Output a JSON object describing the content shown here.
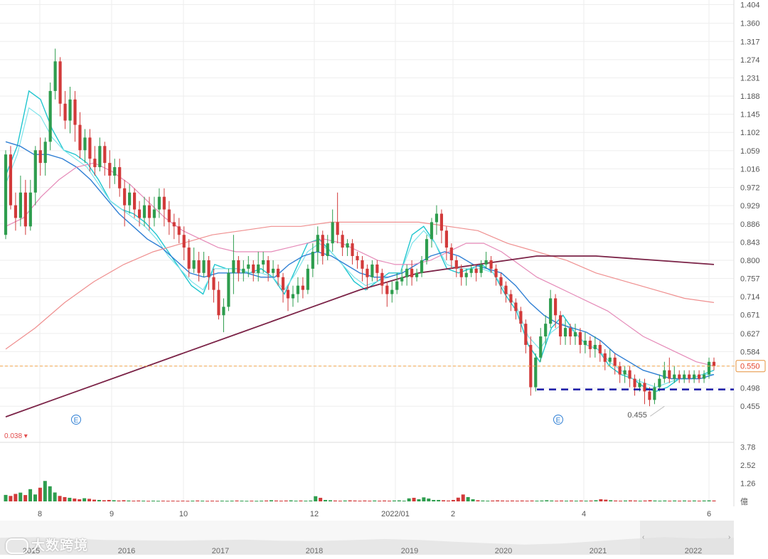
{
  "colors": {
    "up": "#2e9d4e",
    "down": "#d23a3a",
    "ma_fast": "#20c6cf",
    "ma_fast2": "#7de3ea",
    "ma_mid": "#2f7fd4",
    "ma_long": "#e58ab8",
    "ma_longer": "#ef8f8f",
    "ma_longest": "#7b2347",
    "price_line": "#f4a64b",
    "support_line": "#1a1aa8",
    "badge": "#2f7fd4",
    "grid": "#eeeeee"
  },
  "chart_data": {
    "type": "candlestick",
    "price_axis": {
      "ticks": [
        "1.404",
        "1.360",
        "1.317",
        "1.274",
        "1.231",
        "1.188",
        "1.145",
        "1.102",
        "1.059",
        "1.016",
        "0.972",
        "0.929",
        "0.886",
        "0.843",
        "0.800",
        "0.757",
        "0.714",
        "0.671",
        "0.627",
        "0.584",
        "0.550",
        "0.498",
        "0.455"
      ],
      "range": [
        0.41,
        1.415
      ]
    },
    "time_axis": {
      "labels": [
        "8",
        "9",
        "10",
        "12",
        "2022/01",
        "2",
        "4",
        "6"
      ]
    },
    "current_price": {
      "value": 0.55,
      "label": "0.550"
    },
    "support_level": 0.498,
    "low_annotation": {
      "value": 0.455,
      "label": "0.455"
    },
    "change_label": "0.038 ▾",
    "event_badges": [
      {
        "label": "E"
      },
      {
        "label": "E"
      }
    ],
    "candles": [
      [
        0.86,
        1.05,
        0.85,
        1.06
      ],
      [
        1.05,
        0.93,
        0.92,
        1.07
      ],
      [
        0.93,
        0.9,
        0.87,
        0.96
      ],
      [
        0.9,
        0.96,
        0.88,
        1.0
      ],
      [
        0.96,
        0.88,
        0.86,
        0.99
      ],
      [
        0.88,
        0.96,
        0.87,
        0.99
      ],
      [
        0.96,
        1.06,
        0.93,
        1.07
      ],
      [
        1.06,
        1.03,
        1.0,
        1.09
      ],
      [
        1.03,
        1.08,
        1.0,
        1.09
      ],
      [
        1.08,
        1.2,
        1.06,
        1.22
      ],
      [
        1.2,
        1.27,
        1.18,
        1.3
      ],
      [
        1.27,
        1.17,
        1.14,
        1.28
      ],
      [
        1.17,
        1.13,
        1.11,
        1.2
      ],
      [
        1.13,
        1.18,
        1.1,
        1.21
      ],
      [
        1.18,
        1.12,
        1.08,
        1.2
      ],
      [
        1.12,
        1.06,
        1.04,
        1.15
      ],
      [
        1.06,
        1.09,
        1.03,
        1.11
      ],
      [
        1.09,
        1.04,
        1.01,
        1.11
      ],
      [
        1.04,
        1.02,
        1.0,
        1.07
      ],
      [
        1.02,
        1.07,
        1.01,
        1.09
      ],
      [
        1.07,
        1.03,
        1.0,
        1.08
      ],
      [
        1.03,
        1.0,
        0.97,
        1.06
      ],
      [
        1.0,
        1.02,
        0.98,
        1.04
      ],
      [
        1.02,
        0.97,
        0.95,
        1.04
      ],
      [
        0.97,
        0.93,
        0.88,
        0.99
      ],
      [
        0.93,
        0.96,
        0.91,
        0.98
      ],
      [
        0.96,
        0.92,
        0.9,
        0.97
      ],
      [
        0.92,
        0.9,
        0.88,
        0.94
      ],
      [
        0.9,
        0.93,
        0.88,
        0.95
      ],
      [
        0.93,
        0.9,
        0.87,
        0.95
      ],
      [
        0.9,
        0.92,
        0.88,
        0.95
      ],
      [
        0.92,
        0.95,
        0.9,
        0.97
      ],
      [
        0.95,
        0.92,
        0.88,
        0.97
      ],
      [
        0.92,
        0.89,
        0.86,
        0.94
      ],
      [
        0.89,
        0.88,
        0.85,
        0.91
      ],
      [
        0.88,
        0.86,
        0.84,
        0.9
      ],
      [
        0.86,
        0.83,
        0.8,
        0.88
      ],
      [
        0.83,
        0.78,
        0.76,
        0.85
      ],
      [
        0.78,
        0.8,
        0.77,
        0.83
      ],
      [
        0.8,
        0.77,
        0.75,
        0.82
      ],
      [
        0.77,
        0.8,
        0.76,
        0.82
      ],
      [
        0.8,
        0.76,
        0.73,
        0.81
      ],
      [
        0.76,
        0.73,
        0.7,
        0.78
      ],
      [
        0.73,
        0.67,
        0.66,
        0.75
      ],
      [
        0.67,
        0.69,
        0.63,
        0.71
      ],
      [
        0.69,
        0.77,
        0.68,
        0.78
      ],
      [
        0.77,
        0.8,
        0.72,
        0.86
      ],
      [
        0.8,
        0.77,
        0.75,
        0.81
      ],
      [
        0.77,
        0.78,
        0.75,
        0.8
      ],
      [
        0.78,
        0.79,
        0.76,
        0.81
      ],
      [
        0.79,
        0.77,
        0.75,
        0.8
      ],
      [
        0.77,
        0.79,
        0.75,
        0.82
      ],
      [
        0.79,
        0.8,
        0.77,
        0.82
      ],
      [
        0.8,
        0.77,
        0.75,
        0.81
      ],
      [
        0.77,
        0.78,
        0.76,
        0.8
      ],
      [
        0.78,
        0.76,
        0.74,
        0.79
      ],
      [
        0.76,
        0.73,
        0.7,
        0.77
      ],
      [
        0.73,
        0.71,
        0.68,
        0.74
      ],
      [
        0.71,
        0.72,
        0.69,
        0.74
      ],
      [
        0.72,
        0.74,
        0.7,
        0.76
      ],
      [
        0.74,
        0.73,
        0.71,
        0.76
      ],
      [
        0.73,
        0.78,
        0.72,
        0.79
      ],
      [
        0.78,
        0.82,
        0.76,
        0.84
      ],
      [
        0.82,
        0.86,
        0.79,
        0.88
      ],
      [
        0.86,
        0.81,
        0.79,
        0.87
      ],
      [
        0.81,
        0.84,
        0.8,
        0.86
      ],
      [
        0.84,
        0.89,
        0.82,
        0.92
      ],
      [
        0.89,
        0.86,
        0.84,
        0.96
      ],
      [
        0.86,
        0.83,
        0.81,
        0.87
      ],
      [
        0.83,
        0.84,
        0.81,
        0.85
      ],
      [
        0.84,
        0.81,
        0.79,
        0.85
      ],
      [
        0.81,
        0.8,
        0.78,
        0.82
      ],
      [
        0.8,
        0.78,
        0.75,
        0.81
      ],
      [
        0.78,
        0.76,
        0.73,
        0.79
      ],
      [
        0.76,
        0.79,
        0.75,
        0.8
      ],
      [
        0.79,
        0.77,
        0.75,
        0.8
      ],
      [
        0.77,
        0.74,
        0.72,
        0.78
      ],
      [
        0.74,
        0.72,
        0.69,
        0.75
      ],
      [
        0.72,
        0.73,
        0.7,
        0.75
      ],
      [
        0.73,
        0.75,
        0.72,
        0.77
      ],
      [
        0.75,
        0.76,
        0.74,
        0.78
      ],
      [
        0.76,
        0.78,
        0.74,
        0.79
      ],
      [
        0.78,
        0.76,
        0.74,
        0.8
      ],
      [
        0.76,
        0.77,
        0.75,
        0.78
      ],
      [
        0.77,
        0.8,
        0.76,
        0.81
      ],
      [
        0.8,
        0.85,
        0.79,
        0.86
      ],
      [
        0.85,
        0.89,
        0.83,
        0.9
      ],
      [
        0.89,
        0.91,
        0.86,
        0.93
      ],
      [
        0.91,
        0.87,
        0.84,
        0.92
      ],
      [
        0.87,
        0.83,
        0.8,
        0.88
      ],
      [
        0.83,
        0.8,
        0.78,
        0.84
      ],
      [
        0.8,
        0.78,
        0.76,
        0.81
      ],
      [
        0.78,
        0.76,
        0.74,
        0.79
      ],
      [
        0.76,
        0.77,
        0.74,
        0.78
      ],
      [
        0.77,
        0.78,
        0.76,
        0.79
      ],
      [
        0.78,
        0.77,
        0.75,
        0.79
      ],
      [
        0.77,
        0.79,
        0.76,
        0.8
      ],
      [
        0.79,
        0.8,
        0.78,
        0.82
      ],
      [
        0.8,
        0.78,
        0.77,
        0.81
      ],
      [
        0.78,
        0.76,
        0.74,
        0.79
      ],
      [
        0.76,
        0.74,
        0.72,
        0.77
      ],
      [
        0.74,
        0.72,
        0.7,
        0.75
      ],
      [
        0.72,
        0.7,
        0.68,
        0.73
      ],
      [
        0.7,
        0.68,
        0.66,
        0.71
      ],
      [
        0.68,
        0.65,
        0.63,
        0.69
      ],
      [
        0.65,
        0.6,
        0.58,
        0.66
      ],
      [
        0.6,
        0.5,
        0.48,
        0.62
      ],
      [
        0.5,
        0.57,
        0.49,
        0.58
      ],
      [
        0.57,
        0.62,
        0.56,
        0.64
      ],
      [
        0.62,
        0.65,
        0.6,
        0.67
      ],
      [
        0.65,
        0.71,
        0.64,
        0.73
      ],
      [
        0.71,
        0.67,
        0.64,
        0.72
      ],
      [
        0.67,
        0.62,
        0.6,
        0.68
      ],
      [
        0.62,
        0.64,
        0.6,
        0.66
      ],
      [
        0.64,
        0.62,
        0.6,
        0.65
      ],
      [
        0.62,
        0.63,
        0.6,
        0.65
      ],
      [
        0.63,
        0.6,
        0.58,
        0.64
      ],
      [
        0.6,
        0.61,
        0.58,
        0.63
      ],
      [
        0.61,
        0.59,
        0.57,
        0.62
      ],
      [
        0.59,
        0.6,
        0.57,
        0.62
      ],
      [
        0.6,
        0.58,
        0.56,
        0.61
      ],
      [
        0.58,
        0.56,
        0.54,
        0.59
      ],
      [
        0.56,
        0.57,
        0.55,
        0.59
      ],
      [
        0.57,
        0.55,
        0.53,
        0.58
      ],
      [
        0.55,
        0.53,
        0.51,
        0.56
      ],
      [
        0.53,
        0.54,
        0.51,
        0.55
      ],
      [
        0.54,
        0.52,
        0.5,
        0.55
      ],
      [
        0.52,
        0.5,
        0.48,
        0.53
      ],
      [
        0.5,
        0.51,
        0.49,
        0.52
      ],
      [
        0.51,
        0.49,
        0.46,
        0.52
      ],
      [
        0.49,
        0.47,
        0.455,
        0.5
      ],
      [
        0.47,
        0.5,
        0.46,
        0.51
      ],
      [
        0.5,
        0.52,
        0.49,
        0.53
      ],
      [
        0.52,
        0.54,
        0.51,
        0.56
      ],
      [
        0.54,
        0.52,
        0.51,
        0.57
      ],
      [
        0.52,
        0.53,
        0.51,
        0.55
      ],
      [
        0.53,
        0.52,
        0.51,
        0.54
      ],
      [
        0.52,
        0.53,
        0.51,
        0.54
      ],
      [
        0.53,
        0.52,
        0.51,
        0.54
      ],
      [
        0.52,
        0.53,
        0.51,
        0.54
      ],
      [
        0.53,
        0.52,
        0.51,
        0.54
      ],
      [
        0.52,
        0.53,
        0.51,
        0.54
      ],
      [
        0.53,
        0.56,
        0.52,
        0.57
      ],
      [
        0.56,
        0.55,
        0.54,
        0.57
      ]
    ],
    "moving_averages": [
      {
        "values": [
          1.0,
          1.07,
          1.2,
          1.18,
          1.11,
          1.06,
          1.05,
          1.03,
          0.99,
          0.94,
          0.92,
          0.91,
          0.89,
          0.86,
          0.82,
          0.78,
          0.74,
          0.72,
          0.79,
          0.78,
          0.78,
          0.77,
          0.78,
          0.76,
          0.72,
          0.78,
          0.84,
          0.85,
          0.82,
          0.79,
          0.75,
          0.73,
          0.75,
          0.77,
          0.77,
          0.86,
          0.88,
          0.84,
          0.78,
          0.77,
          0.78,
          0.79,
          0.77,
          0.72,
          0.68,
          0.6,
          0.56,
          0.64,
          0.67,
          0.63,
          0.6,
          0.59,
          0.55,
          0.53,
          0.52,
          0.5,
          0.49,
          0.5,
          0.52,
          0.52,
          0.53,
          0.54
        ]
      },
      {
        "values": [
          0.98,
          1.05,
          1.16,
          1.14,
          1.09,
          1.06,
          1.04,
          1.02,
          0.98,
          0.94,
          0.92,
          0.9,
          0.88,
          0.85,
          0.81,
          0.78,
          0.75,
          0.73,
          0.78,
          0.78,
          0.78,
          0.77,
          0.77,
          0.76,
          0.73,
          0.77,
          0.82,
          0.84,
          0.82,
          0.79,
          0.76,
          0.74,
          0.75,
          0.76,
          0.77,
          0.84,
          0.87,
          0.84,
          0.79,
          0.78,
          0.78,
          0.78,
          0.77,
          0.73,
          0.69,
          0.62,
          0.59,
          0.63,
          0.65,
          0.63,
          0.6,
          0.59,
          0.56,
          0.54,
          0.52,
          0.51,
          0.5,
          0.51,
          0.52,
          0.52,
          0.53,
          0.53
        ]
      },
      {
        "values": [
          1.08,
          1.07,
          1.05,
          1.05,
          1.04,
          1.02,
          0.99,
          0.95,
          0.91,
          0.88,
          0.85,
          0.83,
          0.8,
          0.77,
          0.76,
          0.77,
          0.77,
          0.77,
          0.76,
          0.76,
          0.79,
          0.81,
          0.82,
          0.81,
          0.79,
          0.77,
          0.76,
          0.76,
          0.77,
          0.79,
          0.81,
          0.82,
          0.81,
          0.79,
          0.78,
          0.77,
          0.74,
          0.7,
          0.67,
          0.65,
          0.64,
          0.63,
          0.61,
          0.58,
          0.56,
          0.54,
          0.53,
          0.52,
          0.52,
          0.52,
          0.53
        ]
      },
      {
        "values": [
          0.88,
          0.9,
          0.95,
          0.99,
          1.02,
          1.03,
          1.01,
          0.98,
          0.94,
          0.9,
          0.87,
          0.85,
          0.83,
          0.82,
          0.82,
          0.82,
          0.83,
          0.84,
          0.85,
          0.84,
          0.82,
          0.8,
          0.79,
          0.79,
          0.8,
          0.82,
          0.84,
          0.84,
          0.82,
          0.79,
          0.76,
          0.74,
          0.72,
          0.7,
          0.68,
          0.65,
          0.62,
          0.6,
          0.58,
          0.56,
          0.55
        ]
      },
      {
        "values": [
          0.59,
          0.64,
          0.7,
          0.75,
          0.79,
          0.82,
          0.84,
          0.86,
          0.87,
          0.88,
          0.88,
          0.89,
          0.89,
          0.89,
          0.89,
          0.88,
          0.87,
          0.84,
          0.82,
          0.8,
          0.77,
          0.75,
          0.73,
          0.71,
          0.7
        ]
      },
      {
        "values": [
          0.43,
          0.48,
          0.53,
          0.58,
          0.63,
          0.68,
          0.73,
          0.77,
          0.79,
          0.81,
          0.81,
          0.8,
          0.79
        ]
      }
    ],
    "volume_axis": {
      "ticks": [
        "3.78",
        "2.52",
        "1.26"
      ],
      "unit": "億",
      "range": [
        0,
        4.2
      ]
    },
    "volume": [
      0.45,
      0.38,
      0.52,
      0.61,
      0.44,
      0.85,
      0.48,
      0.95,
      1.42,
      1.05,
      0.62,
      0.38,
      0.3,
      0.25,
      0.2,
      0.15,
      0.22,
      0.18,
      0.12,
      0.1,
      0.08,
      0.1,
      0.08,
      0.06,
      0.08,
      0.06,
      0.05,
      0.06,
      0.05,
      0.04,
      0.05,
      0.04,
      0.05,
      0.04,
      0.05,
      0.04,
      0.05,
      0.04,
      0.05,
      0.06,
      0.05,
      0.04,
      0.05,
      0.04,
      0.05,
      0.04,
      0.05,
      0.06,
      0.05,
      0.04,
      0.05,
      0.04,
      0.05,
      0.06,
      0.08,
      0.06,
      0.05,
      0.06,
      0.07,
      0.05,
      0.06,
      0.05,
      0.06,
      0.36,
      0.25,
      0.1,
      0.08,
      0.06,
      0.05,
      0.06,
      0.07,
      0.06,
      0.05,
      0.06,
      0.05,
      0.06,
      0.05,
      0.06,
      0.05,
      0.06,
      0.07,
      0.05,
      0.21,
      0.25,
      0.15,
      0.28,
      0.2,
      0.1,
      0.1,
      0.08,
      0.06,
      0.1,
      0.26,
      0.48,
      0.3,
      0.15,
      0.08,
      0.06,
      0.05,
      0.06,
      0.07,
      0.06,
      0.05,
      0.06,
      0.05,
      0.06,
      0.05,
      0.06,
      0.05,
      0.06,
      0.08,
      0.06,
      0.05,
      0.06,
      0.05,
      0.06,
      0.05,
      0.06,
      0.05,
      0.06,
      0.08,
      0.15,
      0.12,
      0.08,
      0.06,
      0.05,
      0.06,
      0.07,
      0.06,
      0.05,
      0.06,
      0.08,
      0.06,
      0.05,
      0.06,
      0.05,
      0.06,
      0.05,
      0.06,
      0.05,
      0.06,
      0.05,
      0.06,
      0.07,
      0.06
    ],
    "navigator": {
      "years": [
        "2015",
        "2016",
        "2017",
        "2018",
        "2019",
        "2020",
        "2021",
        "2022"
      ]
    }
  },
  "watermark": {
    "text": "大数跨境"
  }
}
